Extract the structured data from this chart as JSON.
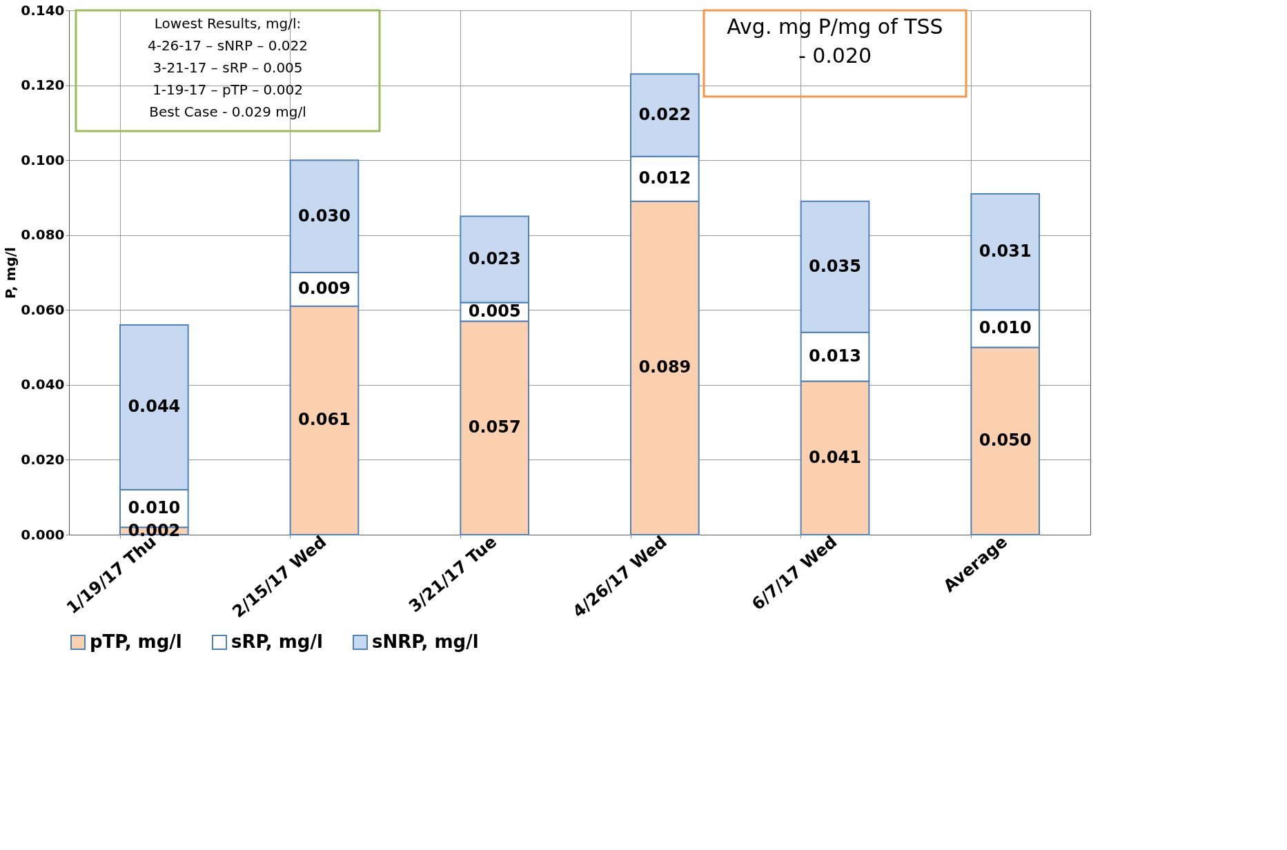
{
  "chart_data": {
    "type": "bar",
    "stacked": true,
    "ylabel": "P, mg/l",
    "categories": [
      "1/19/17 Thu",
      "2/15/17 Wed",
      "3/21/17 Tue",
      "4/26/17 Wed",
      "6/7/17 Wed",
      "Average"
    ],
    "series": [
      {
        "name": "pTP, mg/l",
        "color": "#fbd0ae",
        "values": [
          0.002,
          0.061,
          0.057,
          0.089,
          0.041,
          0.05
        ],
        "value_labels": [
          "0.002",
          "0.061",
          "0.057",
          "0.089",
          "0.041",
          "0.050"
        ]
      },
      {
        "name": "sRP, mg/l",
        "color": "#ffffff",
        "values": [
          0.01,
          0.009,
          0.005,
          0.012,
          0.013,
          0.01
        ],
        "value_labels": [
          "0.010",
          "0.009",
          "0.005",
          "0.012",
          "0.013",
          "0.010"
        ]
      },
      {
        "name": "sNRP, mg/l",
        "color": "#c6d9f1",
        "values": [
          0.044,
          0.03,
          0.023,
          0.022,
          0.035,
          0.031
        ],
        "value_labels": [
          "0.044",
          "0.030",
          "0.023",
          "0.022",
          "0.035",
          "0.031"
        ]
      }
    ],
    "ylim": [
      0,
      0.14
    ],
    "yticks": [
      {
        "value": 0,
        "label": "0.000"
      },
      {
        "value": 0.02,
        "label": "0.020"
      },
      {
        "value": 0.04,
        "label": "0.040"
      },
      {
        "value": 0.06,
        "label": "0.060"
      },
      {
        "value": 0.08,
        "label": "0.080"
      },
      {
        "value": 0.1,
        "label": "0.100"
      },
      {
        "value": 0.12,
        "label": "0.120"
      },
      {
        "value": 0.14,
        "label": "0.140"
      }
    ],
    "grid": true,
    "legend": "bottom",
    "annotations": [
      "Lowest Results, mg/l:\n4-26-17 – sNRP – 0.022\n3-21-17 – sRP – 0.005\n1-19-17 – pTP – 0.002\nBest Case - 0.029 mg/l",
      "Avg. mg P/mg of TSS\n -  0.020"
    ]
  }
}
